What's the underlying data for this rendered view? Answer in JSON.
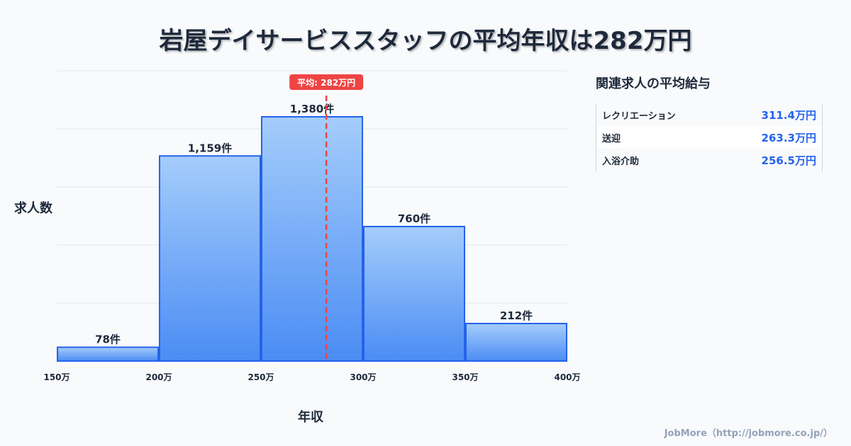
{
  "title": "岩屋デイサービススタッフの平均年収は282万円",
  "chart_data": {
    "type": "bar",
    "title": "岩屋デイサービススタッフの平均年収は282万円",
    "xlabel": "年収",
    "ylabel": "求人数",
    "bins": [
      [
        150,
        200
      ],
      [
        200,
        250
      ],
      [
        250,
        300
      ],
      [
        300,
        350
      ],
      [
        350,
        400
      ]
    ],
    "values": [
      78,
      1159,
      1380,
      760,
      212
    ],
    "value_labels": [
      "78件",
      "1,159件",
      "1,380件",
      "760件",
      "212件"
    ],
    "x_ticks": [
      "150万",
      "200万",
      "250万",
      "300万",
      "350万",
      "400万"
    ],
    "x_tick_values": [
      150,
      200,
      250,
      300,
      350,
      400
    ],
    "xlim": [
      150,
      400
    ],
    "ylim": [
      0,
      1640
    ],
    "grid": true,
    "average": 282,
    "average_label": "平均: 282万円",
    "colors": {
      "bar_top": "#a5cdfb",
      "bar_bottom": "#4b8cf4",
      "bar_stroke": "#2563eb",
      "average": "#ef4444"
    }
  },
  "side": {
    "title": "関連求人の平均給与",
    "rows": [
      {
        "label": "レクリエーション",
        "value": "311.4万円"
      },
      {
        "label": "送迎",
        "value": "263.3万円"
      },
      {
        "label": "入浴介助",
        "value": "256.5万円"
      }
    ]
  },
  "footer": "JobMore（http://jobmore.co.jp/）"
}
